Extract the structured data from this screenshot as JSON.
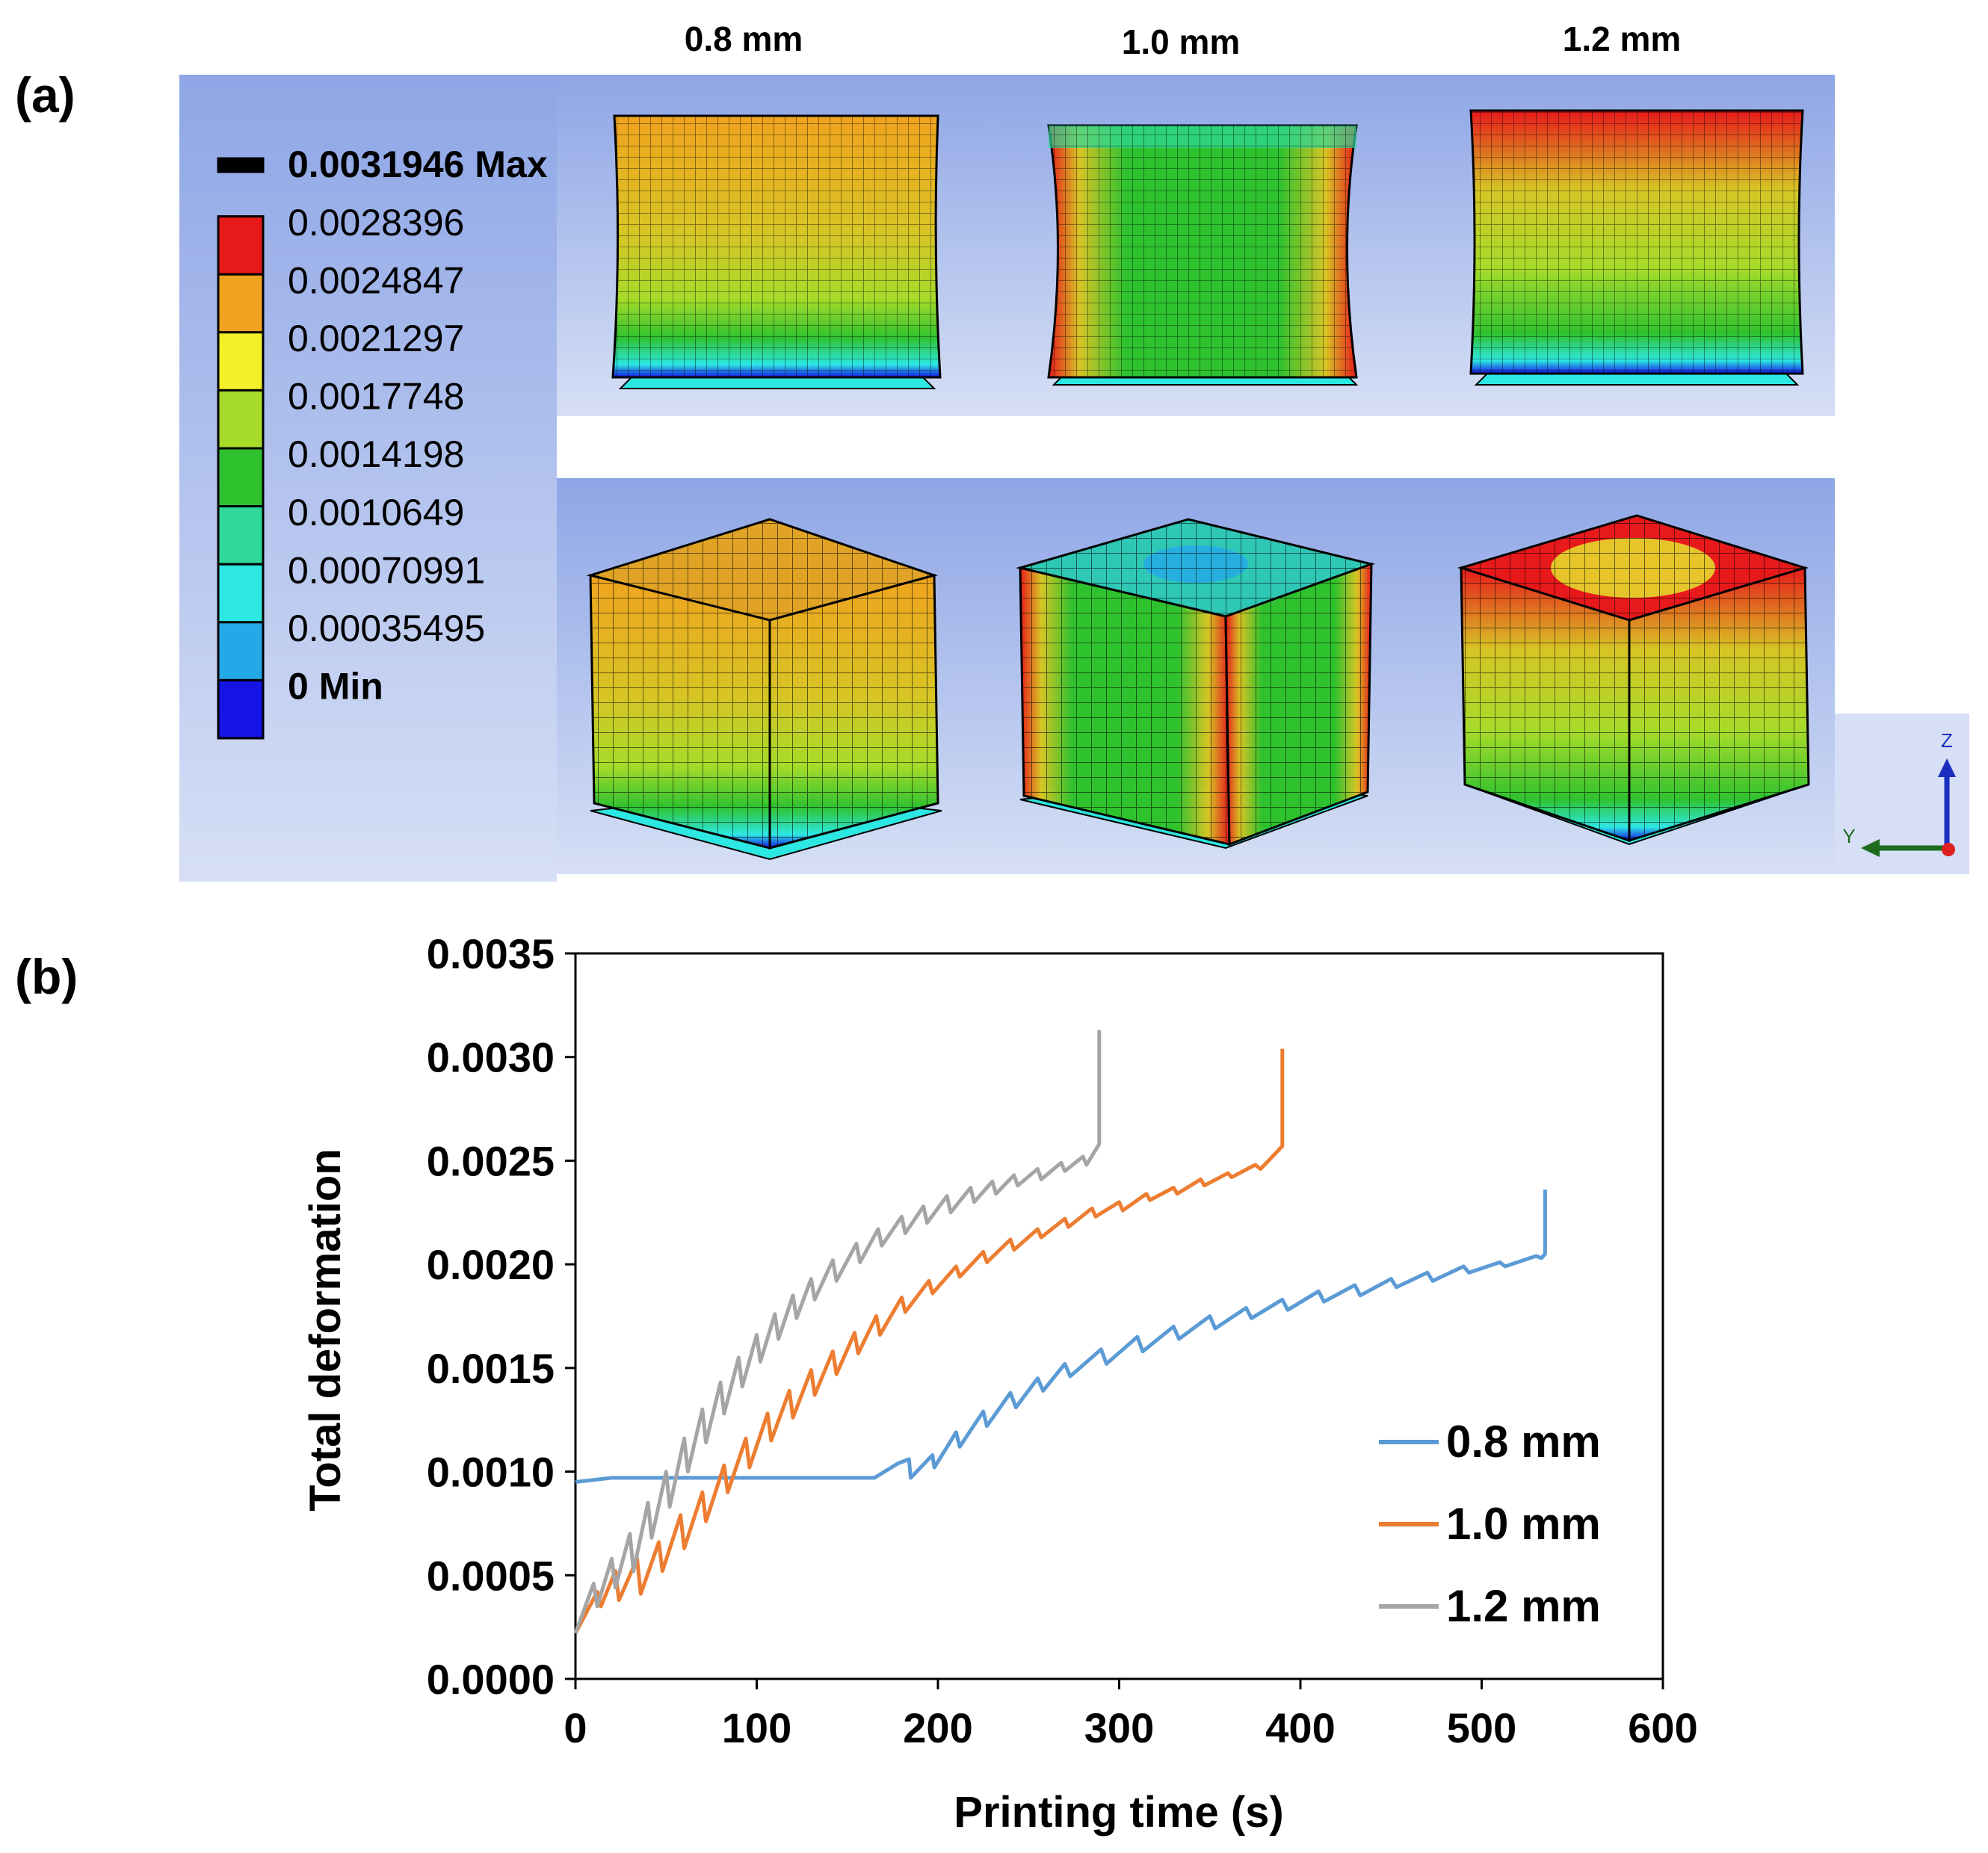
{
  "panel_a": {
    "label": "(a)",
    "columns": [
      "0.8 mm",
      "1.0 mm",
      "1.2 mm"
    ],
    "legend_labels": [
      "0.0031946 Max",
      "0.0028396",
      "0.0024847",
      "0.0021297",
      "0.0017748",
      "0.0014198",
      "0.0010649",
      "0.00070991",
      "0.00035495",
      "0 Min"
    ],
    "legend_colors": [
      "#000000",
      "#e8191b",
      "#f0a31e",
      "#f3f028",
      "#a6db2a",
      "#2fc22f",
      "#2ed99a",
      "#2de8e2",
      "#23a8e8",
      "#1414e6"
    ],
    "triad": {
      "z": "Z",
      "y": "Y"
    }
  },
  "panel_b": {
    "label": "(b)"
  },
  "chart_data": {
    "type": "line",
    "xlabel": "Printing time (s)",
    "ylabel": "Total deformation",
    "xlim": [
      0,
      600
    ],
    "ylim": [
      0,
      0.0035
    ],
    "xticks": [
      "0",
      "100",
      "200",
      "300",
      "400",
      "500",
      "600"
    ],
    "yticks": [
      "0.0000",
      "0.0005",
      "0.0010",
      "0.0015",
      "0.0020",
      "0.0025",
      "0.0030",
      "0.0035"
    ],
    "grid": false,
    "legend_position": "bottom-right",
    "series": [
      {
        "name": "0.8 mm",
        "color": "#5b9bd5",
        "x": [
          0,
          10,
          20,
          40,
          80,
          120,
          160,
          165,
          178,
          184,
          185,
          197,
          198,
          210,
          212,
          225,
          227,
          240,
          243,
          255,
          258,
          270,
          273,
          290,
          293,
          310,
          313,
          330,
          333,
          350,
          353,
          370,
          373,
          390,
          393,
          410,
          413,
          430,
          433,
          450,
          453,
          470,
          473,
          490,
          493,
          510,
          513,
          530,
          533,
          535,
          535
        ],
        "y": [
          0.00095,
          0.00096,
          0.00097,
          0.00097,
          0.00097,
          0.00097,
          0.00097,
          0.00097,
          0.00104,
          0.00106,
          0.00097,
          0.00108,
          0.00102,
          0.00119,
          0.00112,
          0.00129,
          0.00122,
          0.00138,
          0.00131,
          0.00145,
          0.00139,
          0.00152,
          0.00146,
          0.00159,
          0.00152,
          0.00165,
          0.00158,
          0.0017,
          0.00164,
          0.00175,
          0.00169,
          0.00179,
          0.00174,
          0.00183,
          0.00178,
          0.00187,
          0.00182,
          0.0019,
          0.00185,
          0.00193,
          0.00189,
          0.00196,
          0.00192,
          0.00199,
          0.00196,
          0.00201,
          0.00199,
          0.00204,
          0.00203,
          0.00205,
          0.00236
        ]
      },
      {
        "name": "1.0 mm",
        "color": "#ed7d31",
        "x": [
          0,
          12,
          14,
          22,
          24,
          34,
          36,
          46,
          48,
          58,
          60,
          70,
          72,
          82,
          84,
          94,
          96,
          106,
          108,
          118,
          120,
          130,
          132,
          142,
          144,
          154,
          156,
          166,
          168,
          180,
          182,
          195,
          197,
          210,
          212,
          225,
          227,
          240,
          242,
          255,
          257,
          270,
          272,
          285,
          287,
          300,
          302,
          315,
          317,
          330,
          332,
          345,
          347,
          360,
          362,
          375,
          378,
          390,
          390
        ],
        "y": [
          0.00022,
          0.00042,
          0.00035,
          0.00052,
          0.00038,
          0.00058,
          0.00041,
          0.00066,
          0.00052,
          0.00079,
          0.00063,
          0.0009,
          0.00076,
          0.00103,
          0.0009,
          0.00116,
          0.00102,
          0.00128,
          0.00115,
          0.00139,
          0.00126,
          0.00149,
          0.00137,
          0.00158,
          0.00147,
          0.00167,
          0.00157,
          0.00175,
          0.00166,
          0.00184,
          0.00177,
          0.00192,
          0.00186,
          0.00199,
          0.00194,
          0.00206,
          0.00201,
          0.00212,
          0.00207,
          0.00217,
          0.00213,
          0.00222,
          0.00218,
          0.00227,
          0.00223,
          0.0023,
          0.00226,
          0.00234,
          0.00231,
          0.00237,
          0.00234,
          0.00241,
          0.00238,
          0.00244,
          0.00242,
          0.00248,
          0.00246,
          0.00257,
          0.00304
        ]
      },
      {
        "name": "1.2 mm",
        "color": "#a5a5a5",
        "x": [
          0,
          10,
          12,
          20,
          22,
          30,
          32,
          40,
          42,
          50,
          52,
          60,
          62,
          70,
          72,
          80,
          82,
          90,
          92,
          100,
          102,
          110,
          112,
          120,
          122,
          130,
          132,
          142,
          144,
          155,
          157,
          167,
          169,
          180,
          182,
          192,
          194,
          205,
          207,
          218,
          220,
          230,
          232,
          242,
          244,
          255,
          257,
          268,
          270,
          280,
          282,
          289,
          289
        ],
        "y": [
          0.00022,
          0.00046,
          0.00035,
          0.00058,
          0.00044,
          0.0007,
          0.00052,
          0.00085,
          0.00068,
          0.001,
          0.00083,
          0.00116,
          0.001,
          0.0013,
          0.00114,
          0.00143,
          0.00128,
          0.00155,
          0.00141,
          0.00166,
          0.00153,
          0.00176,
          0.00164,
          0.00185,
          0.00174,
          0.00193,
          0.00183,
          0.00202,
          0.00192,
          0.0021,
          0.00201,
          0.00217,
          0.00209,
          0.00223,
          0.00215,
          0.00228,
          0.0022,
          0.00233,
          0.00225,
          0.00237,
          0.0023,
          0.0024,
          0.00234,
          0.00243,
          0.00238,
          0.00246,
          0.00241,
          0.00249,
          0.00245,
          0.00252,
          0.00248,
          0.00258,
          0.00313
        ]
      }
    ]
  }
}
